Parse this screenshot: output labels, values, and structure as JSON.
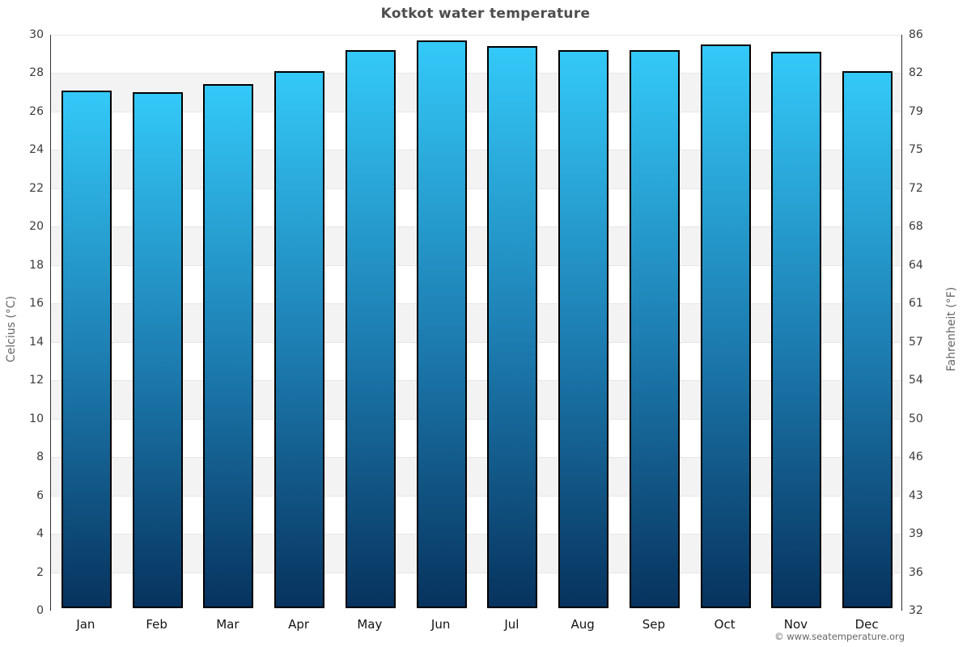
{
  "title": "Kotkot water temperature",
  "footer": {
    "copyright": "© www.seatemperature.org"
  },
  "chart_data": {
    "type": "bar",
    "title": "Kotkot water temperature",
    "categories": [
      "Jan",
      "Feb",
      "Mar",
      "Apr",
      "May",
      "Jun",
      "Jul",
      "Aug",
      "Sep",
      "Oct",
      "Nov",
      "Dec"
    ],
    "values": [
      27.1,
      27.0,
      27.4,
      28.1,
      29.2,
      29.7,
      29.4,
      29.2,
      29.2,
      29.5,
      29.1,
      28.1
    ],
    "series_name": "Water temperature (°C)",
    "xlabel": "",
    "ylabel_left": "Celcius (°C)",
    "ylabel_right": "Fahrenheit (°F)",
    "ylim": [
      0,
      30
    ],
    "yticks_celsius": [
      0,
      2,
      4,
      6,
      8,
      10,
      12,
      14,
      16,
      18,
      20,
      22,
      24,
      26,
      28,
      30
    ],
    "yticks_fahrenheit": [
      32,
      36,
      39,
      43,
      46,
      50,
      54,
      57,
      61,
      64,
      68,
      72,
      75,
      79,
      82,
      86
    ],
    "grid": "alternating horizontal bands every 2°C",
    "legend_position": "none",
    "colors": {
      "bar_top": "#33c9f8",
      "bar_mid": "#1d7db1",
      "bar_bottom": "#07335e",
      "bar_border": "#000000",
      "band_light": "#ffffff",
      "band_dark": "#f3f3f3",
      "grid_line": "#e7e7e7",
      "axis_line": "#333333",
      "title_color": "#4d4d4d",
      "tick_color": "#3c3c3c",
      "axis_label_color": "#666666",
      "footer_color": "#666666"
    }
  }
}
